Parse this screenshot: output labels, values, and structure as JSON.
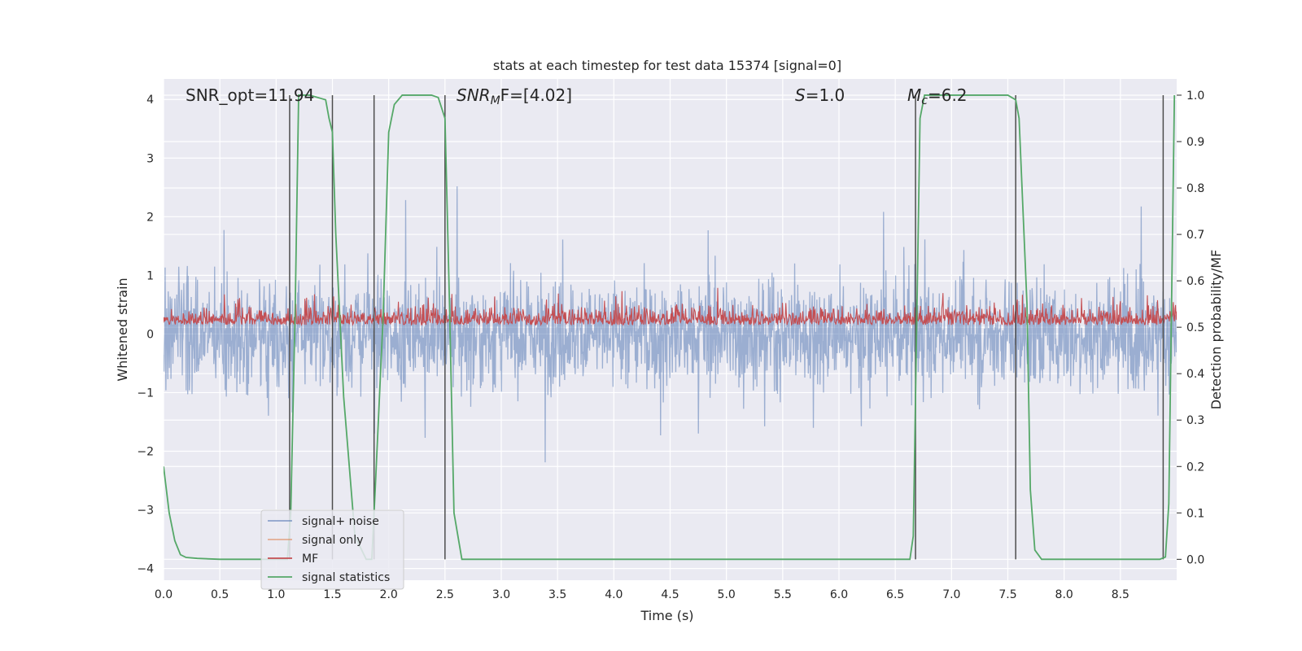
{
  "chart_data": {
    "type": "line",
    "title": "stats at each timestep for test data 15374 [signal=0]",
    "xlabel": "Time (s)",
    "ylabel": "Whitened strain",
    "y2label": "Detection probability/MF",
    "xlim": [
      0.0,
      9.0
    ],
    "ylim": [
      -4.2,
      4.35
    ],
    "y2lim": [
      -0.045,
      1.035
    ],
    "xticks": [
      0.0,
      0.5,
      1.0,
      1.5,
      2.0,
      2.5,
      3.0,
      3.5,
      4.0,
      4.5,
      5.0,
      5.5,
      6.0,
      6.5,
      7.0,
      7.5,
      8.0,
      8.5
    ],
    "xtick_labels": [
      "0.0",
      "0.5",
      "1.0",
      "1.5",
      "2.0",
      "2.5",
      "3.0",
      "3.5",
      "4.0",
      "4.5",
      "5.0",
      "5.5",
      "6.0",
      "6.5",
      "7.0",
      "7.5",
      "8.0",
      "8.5"
    ],
    "yticks": [
      -4,
      -3,
      -2,
      -1,
      0,
      1,
      2,
      3,
      4
    ],
    "ytick_labels": [
      "−4",
      "−3",
      "−2",
      "−1",
      "0",
      "1",
      "2",
      "3",
      "4"
    ],
    "y2ticks": [
      0.0,
      0.1,
      0.2,
      0.3,
      0.4,
      0.5,
      0.6,
      0.7,
      0.8,
      0.9,
      1.0
    ],
    "y2tick_labels": [
      "0.0",
      "0.1",
      "0.2",
      "0.3",
      "0.4",
      "0.5",
      "0.6",
      "0.7",
      "0.8",
      "0.9",
      "1.0"
    ],
    "grid": true,
    "legend_position": "lower-left",
    "annotations": {
      "snr_opt": "SNR_opt=11.94",
      "snr_mf_main": "SNR",
      "snr_mf_sub": "M",
      "snr_mf_rest": "F=[4.02]",
      "s_main": "S",
      "s_rest": "=1.0",
      "mc_main": "M",
      "mc_sub": "c",
      "mc_rest": "=6.2"
    },
    "series": [
      {
        "name": "signal+ noise",
        "axis": "left",
        "color": "#4c72b0",
        "style": "dense noise trace",
        "typical_range": [
          -1.45,
          1.65
        ],
        "extreme_range": [
          -3.8,
          4.0
        ]
      },
      {
        "name": "signal only",
        "axis": "left",
        "color": "#dd8452",
        "style": "not visible (flat)"
      },
      {
        "name": "MF",
        "axis": "right",
        "color": "#c44e52",
        "style": "dense noise trace",
        "typical_range": [
          0.5,
          0.58
        ],
        "extreme_range": [
          0.5,
          0.62
        ]
      },
      {
        "name": "signal statistics",
        "axis": "right",
        "color": "#55a868",
        "x": [
          0.0,
          0.05,
          0.1,
          0.15,
          0.2,
          0.3,
          0.5,
          1.0,
          1.1,
          1.13,
          1.17,
          1.2,
          1.3,
          1.44,
          1.47,
          1.5,
          1.53,
          1.6,
          1.7,
          1.8,
          1.85,
          1.88,
          1.95,
          2.0,
          2.05,
          2.12,
          2.2,
          2.3,
          2.38,
          2.44,
          2.5,
          2.54,
          2.58,
          2.65,
          3.0,
          4.0,
          5.0,
          6.0,
          6.5,
          6.63,
          6.66,
          6.69,
          6.72,
          6.76,
          7.0,
          7.5,
          7.57,
          7.6,
          7.67,
          7.7,
          7.74,
          7.8,
          8.0,
          8.5,
          8.8,
          8.85,
          8.9,
          8.93,
          8.98
        ],
        "y": [
          0.2,
          0.1,
          0.04,
          0.01,
          0.004,
          0.002,
          0.0,
          0.0,
          0.0,
          0.1,
          0.55,
          1.0,
          1.0,
          0.99,
          0.95,
          0.92,
          0.7,
          0.35,
          0.05,
          0.0,
          0.0,
          0.15,
          0.52,
          0.92,
          0.98,
          1.0,
          1.0,
          1.0,
          1.0,
          0.995,
          0.95,
          0.55,
          0.1,
          0.0,
          0.0,
          0.0,
          0.0,
          0.0,
          0.0,
          0.0,
          0.05,
          0.5,
          0.95,
          1.0,
          1.0,
          1.0,
          0.99,
          0.95,
          0.55,
          0.15,
          0.02,
          0.0,
          0.0,
          0.0,
          0.0,
          0.0,
          0.005,
          0.12,
          1.0
        ]
      }
    ],
    "vertical_markers_x": [
      1.12,
      1.5,
      1.87,
      2.5,
      6.68,
      7.57,
      8.88
    ],
    "vertical_marker_color": "#4d4d4d"
  }
}
